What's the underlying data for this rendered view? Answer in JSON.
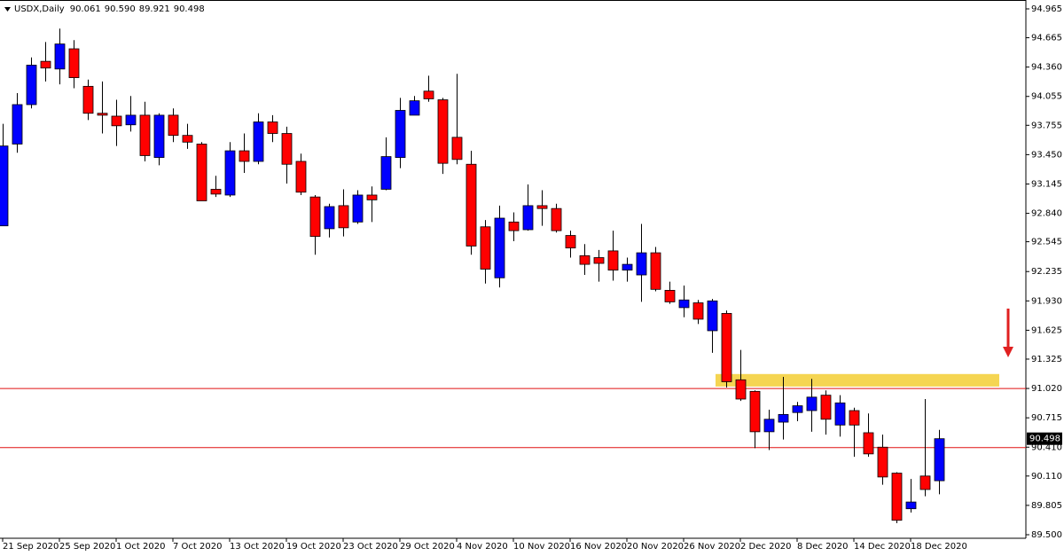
{
  "chart_data": {
    "type": "candlestick",
    "symbol": "USDX,Daily",
    "quote": [
      {
        "value": 90.061,
        "label": "90.061"
      },
      {
        "value": 90.59,
        "label": "90.590"
      },
      {
        "value": 89.921,
        "label": "89.921"
      },
      {
        "value": 90.498,
        "label": "90.498"
      }
    ],
    "categories": [
      "21 Sep 2020",
      null,
      null,
      null,
      "25 Sep 2020",
      null,
      null,
      null,
      "1 Oct 2020",
      null,
      null,
      null,
      "7 Oct 2020",
      null,
      null,
      null,
      "13 Oct 2020",
      null,
      null,
      null,
      "19 Oct 2020",
      null,
      null,
      null,
      "23 Oct 2020",
      null,
      null,
      null,
      "29 Oct 2020",
      null,
      null,
      null,
      "4 Nov 2020",
      null,
      null,
      null,
      "10 Nov 2020",
      null,
      null,
      null,
      "16 Nov 2020",
      null,
      null,
      null,
      "20 Nov 2020",
      null,
      null,
      null,
      "26 Nov 2020",
      null,
      null,
      null,
      "2 Dec 2020",
      null,
      null,
      null,
      "8 Dec 2020",
      null,
      null,
      null,
      "14 Dec 2020",
      null,
      null,
      null,
      "18 Dec 2020",
      null,
      null
    ],
    "open": [
      92.71,
      93.56,
      93.97,
      94.42,
      94.34,
      94.55,
      94.16,
      93.88,
      93.85,
      93.76,
      93.86,
      93.42,
      93.86,
      93.65,
      93.56,
      93.09,
      93.03,
      93.49,
      93.38,
      93.79,
      93.67,
      93.38,
      93.01,
      92.68,
      92.92,
      92.75,
      93.03,
      93.09,
      93.42,
      93.86,
      94.11,
      94.02,
      93.63,
      93.35,
      92.7,
      92.17,
      92.75,
      92.67,
      92.92,
      92.89,
      92.61,
      92.4,
      92.38,
      92.45,
      92.25,
      92.2,
      92.43,
      92.04,
      91.86,
      91.91,
      91.62,
      91.8,
      91.11,
      90.99,
      90.57,
      90.67,
      90.77,
      90.79,
      90.95,
      90.64,
      90.79,
      90.56,
      90.41,
      90.14,
      89.77,
      90.11,
      90.061
    ],
    "high": [
      93.77,
      94.09,
      94.46,
      94.62,
      94.76,
      94.64,
      94.23,
      94.21,
      94.02,
      94.06,
      94.0,
      93.88,
      93.93,
      93.77,
      93.58,
      93.23,
      93.58,
      93.67,
      93.88,
      93.86,
      93.74,
      93.46,
      93.03,
      92.94,
      93.09,
      93.08,
      93.12,
      93.63,
      94.04,
      94.06,
      94.27,
      94.04,
      94.29,
      93.49,
      92.77,
      92.92,
      92.85,
      93.14,
      93.08,
      92.94,
      92.66,
      92.52,
      92.46,
      92.66,
      92.38,
      92.73,
      92.49,
      92.13,
      92.09,
      91.94,
      91.95,
      91.83,
      91.42,
      91.0,
      90.8,
      91.14,
      90.88,
      91.12,
      91.0,
      90.95,
      90.82,
      90.76,
      90.54,
      90.15,
      90.08,
      90.91,
      90.59
    ],
    "low": [
      92.71,
      93.47,
      93.93,
      94.21,
      94.18,
      94.14,
      93.81,
      93.67,
      93.54,
      93.69,
      93.38,
      93.34,
      93.58,
      93.51,
      92.97,
      93.01,
      93.01,
      93.26,
      93.35,
      93.58,
      93.15,
      93.03,
      92.41,
      92.59,
      92.6,
      92.73,
      92.75,
      93.08,
      93.31,
      93.86,
      94.0,
      93.25,
      93.35,
      92.41,
      92.11,
      92.07,
      92.55,
      92.66,
      92.71,
      92.64,
      92.38,
      92.2,
      92.13,
      92.14,
      92.13,
      91.92,
      92.03,
      91.9,
      91.76,
      91.69,
      91.39,
      91.03,
      90.89,
      90.4,
      90.38,
      90.49,
      90.68,
      90.57,
      90.54,
      90.52,
      90.31,
      90.31,
      90.02,
      89.62,
      89.73,
      89.9,
      89.921
    ],
    "close": [
      93.54,
      93.97,
      94.38,
      94.35,
      94.6,
      94.25,
      93.88,
      93.86,
      93.75,
      93.86,
      93.44,
      93.86,
      93.65,
      93.58,
      92.97,
      93.04,
      93.49,
      93.38,
      93.79,
      93.67,
      93.35,
      93.06,
      92.6,
      92.91,
      92.69,
      93.03,
      92.98,
      93.43,
      93.91,
      94.01,
      94.03,
      93.36,
      93.4,
      92.5,
      92.26,
      92.79,
      92.66,
      92.92,
      92.89,
      92.66,
      92.48,
      92.31,
      92.32,
      92.25,
      92.31,
      92.43,
      92.05,
      91.92,
      91.94,
      91.74,
      91.93,
      91.09,
      90.91,
      90.57,
      90.7,
      90.75,
      90.84,
      90.93,
      90.7,
      90.87,
      90.64,
      90.34,
      90.1,
      89.65,
      89.84,
      89.97,
      90.498
    ],
    "up_color": "#0000ff",
    "down_color": "#ff0000",
    "ylim": [
      89.5,
      94.965
    ],
    "yticks": [
      94.965,
      94.665,
      {
        "value": 94.36,
        "label": "94.360"
      },
      94.055,
      93.755,
      {
        "value": 93.45,
        "label": "93.450"
      },
      93.145,
      {
        "value": 92.84,
        "label": "92.840"
      },
      92.545,
      92.235,
      {
        "value": 91.93,
        "label": "91.930"
      },
      91.625,
      91.325,
      {
        "value": 91.02,
        "label": "91.020"
      },
      90.715,
      {
        "value": 90.41,
        "label": "90.410"
      },
      {
        "value": 90.11,
        "label": "90.110"
      },
      89.805,
      {
        "value": 89.5,
        "label": "89.500"
      }
    ],
    "current_price": {
      "value": 90.498,
      "label": "90.498"
    },
    "hlines": [
      91.02,
      90.405
    ],
    "hline_color": "#e01010",
    "zone": [
      91.04,
      91.17
    ],
    "zone_color": "#f5d552"
  }
}
